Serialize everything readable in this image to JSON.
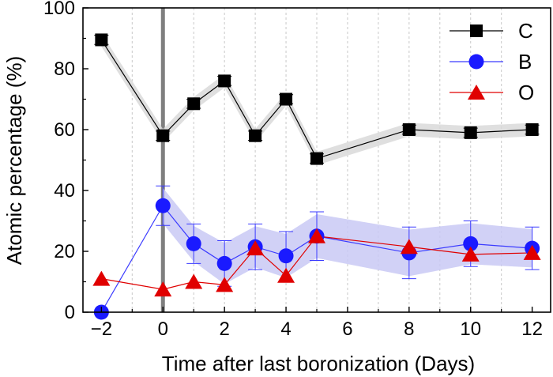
{
  "chart_data": {
    "type": "line",
    "title": "",
    "xlabel": "Time after last boronization (Days)",
    "ylabel": "Atomic percentage (%)",
    "xlim": [
      -2.6,
      12.6
    ],
    "ylim": [
      0,
      100
    ],
    "xticks": [
      -2,
      0,
      2,
      4,
      6,
      8,
      10,
      12
    ],
    "xtick_labels": [
      "−2",
      "0",
      "2",
      "4",
      "6",
      "8",
      "10",
      "12"
    ],
    "yticks": [
      0,
      20,
      40,
      60,
      80,
      100
    ],
    "grid": "vertical dashed gridlines at each day",
    "gridlines_x": [
      -1,
      1,
      2,
      3,
      4,
      5,
      6,
      7,
      8,
      9,
      10,
      11
    ],
    "reference_line": {
      "x": 0,
      "color": "#7f7f7f"
    },
    "legend_position": "top-right",
    "series": [
      {
        "name": "C",
        "marker": "square",
        "color": "#000000",
        "line_color": "#000000",
        "band_color": "#d9d9d9",
        "x": [
          -2,
          0,
          1,
          2,
          3,
          4,
          5,
          8,
          10,
          12
        ],
        "y": [
          89.5,
          58,
          68.5,
          76,
          58,
          70,
          50.5,
          60,
          59,
          60
        ],
        "err": [
          1.5,
          1.5,
          1.5,
          1.5,
          1.5,
          1.5,
          1.5,
          1.5,
          1.5,
          1.5
        ]
      },
      {
        "name": "B",
        "marker": "circle",
        "color": "#1a1aff",
        "line_color": "#3a3aff",
        "band_color": "#c9c9f5",
        "x": [
          -2,
          0,
          1,
          2,
          3,
          4,
          5,
          8,
          10,
          12
        ],
        "y": [
          0,
          35,
          22.5,
          16,
          21.5,
          18.5,
          25,
          19.5,
          22.5,
          21
        ],
        "err": [
          0,
          6.5,
          6.5,
          7.5,
          7.5,
          8,
          8,
          8.5,
          7.5,
          7
        ]
      },
      {
        "name": "O",
        "marker": "triangle",
        "color": "#e00000",
        "line_color": "#e00000",
        "band_color": "#f5c9c9",
        "x": [
          -2,
          0,
          1,
          2,
          3,
          4,
          5,
          8,
          10,
          12
        ],
        "y": [
          11,
          7.5,
          10,
          9,
          21,
          12,
          25,
          21.5,
          19,
          19.5
        ],
        "err": []
      }
    ]
  }
}
